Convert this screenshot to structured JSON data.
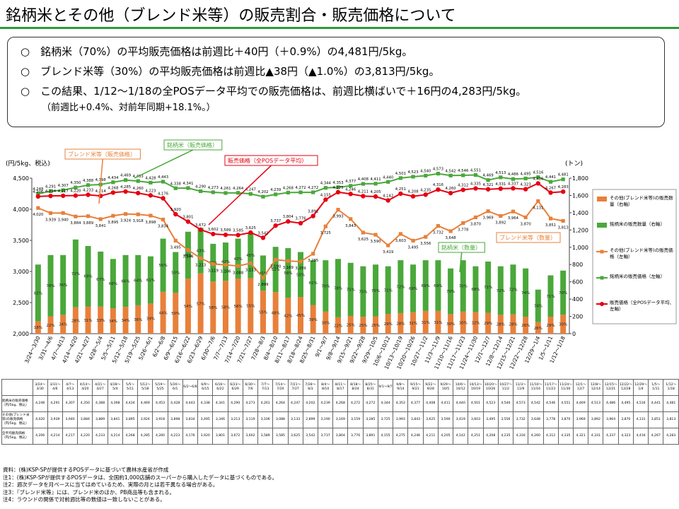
{
  "header": {
    "title": "銘柄米とその他（ブレンド米等）の販売割合・販売価格について",
    "lines": [
      "○　銘柄米（70%）の平均販売価格は前週比＋40円（＋0.9%）の4,481円/5kg。",
      "○　ブレンド米等（30%）の平均販売価格は前週比▲38円（▲1.0%）の3,813円/5kg。",
      "○　この結果、1/12～1/18の全POSデータ平均での販売価格は、前週比横ばいで＋16円の4,283円/5kg。",
      "（前週比+0.4%、対前年同期+18.1%。）"
    ]
  },
  "chart_data": {
    "type": "combo",
    "y_label": "(円/5kg、税込)",
    "y2_label": "(トン)",
    "categories": [
      "3/24～3/30",
      "3/31～4/6",
      "4/7～4/13",
      "4/14～4/20",
      "4/21～4/27",
      "4/28～5/4",
      "5/5～5/11",
      "5/12～5/18",
      "5/19～5/25",
      "5/26～6/1",
      "6/2～6/8",
      "6/9～6/15",
      "6/16～6/22",
      "6/23～6/29",
      "6/30～7/6",
      "7/7～7/13",
      "7/14～7/20",
      "7/21～7/27",
      "7/28～8/3",
      "8/4～8/10",
      "8/11～8/17",
      "8/18～8/24",
      "8/25～8/31",
      "9/1～9/7",
      "9/8～9/14",
      "9/15～9/21",
      "9/22～9/28",
      "9/29～10/5",
      "10/6～10/12",
      "10/13～10/19",
      "10/20～10/26",
      "10/27～11/2",
      "11/3～11/9",
      "11/10～11/16",
      "11/17～11/23",
      "11/24～11/30",
      "12/1～12/7",
      "12/8～12/14",
      "12/15～12/21",
      "12/22～12/28",
      "12/29～1/4",
      "1/5～1/11",
      "1/12～1/18"
    ],
    "ylim": [
      2000,
      4500
    ],
    "yticks": [
      {
        "value": 2000,
        "label": "2,000"
      },
      {
        "value": 2500,
        "label": "2,500"
      },
      {
        "value": 3000,
        "label": "3,000"
      },
      {
        "value": 3500,
        "label": "3,500"
      },
      {
        "value": 4000,
        "label": "4,000"
      },
      {
        "value": 4500,
        "label": "4,500"
      }
    ],
    "y2lim": [
      0,
      1800
    ],
    "y2ticks": [
      0,
      200,
      400,
      600,
      800,
      {
        "value": 1000,
        "label": "1,000"
      },
      {
        "value": 1200,
        "label": "1,200"
      },
      {
        "value": 1400,
        "label": "1,400"
      },
      {
        "value": 1600,
        "label": "1,600"
      },
      {
        "value": 1800,
        "label": "1,800"
      }
    ],
    "series": [
      {
        "name": "その他(ブレンド米等)の販売数量（右軸）",
        "type": "bar",
        "axis": "y2",
        "color": "#e8803a",
        "values": [
          144,
          200,
          218,
          305,
          315,
          313,
          294,
          309,
          328,
          349,
          484,
          472,
          637,
          698,
          603,
          612,
          638,
          643,
          498,
          482,
          416,
          425,
          331,
          255,
          190,
          205,
          195,
          200,
          226,
          238,
          248,
          263,
          263,
          226,
          255,
          250,
          242,
          218,
          224,
          196,
          133,
          196,
          219
        ],
        "share_labels": [
          "18%",
          "22%",
          "24%",
          "28%",
          "31%",
          "33%",
          "34%",
          "34%",
          "36%",
          "39%",
          "44%",
          "50%",
          "54%",
          "57%",
          "58%",
          "58%",
          "58%",
          "55%",
          "55%",
          "48%",
          "42%",
          "45%",
          "39%",
          "30%",
          "22%",
          "25%",
          "25%",
          "25%",
          "29%",
          "28%",
          "31%",
          "31%",
          "31%",
          "30%",
          "30%",
          "32%",
          "29%",
          "28%",
          "28%",
          "26%",
          "26%",
          "29%",
          "30%"
        ]
      },
      {
        "name": "銘柄米の販売数量（右軸）",
        "type": "bar",
        "axis": "y2",
        "color": "#4aa83a",
        "values": [
          656,
          710,
          692,
          785,
          700,
          637,
          571,
          601,
          582,
          546,
          616,
          473,
          543,
          527,
          437,
          443,
          462,
          527,
          407,
          523,
          574,
          520,
          519,
          595,
          675,
          615,
          585,
          600,
          554,
          612,
          552,
          587,
          587,
          529,
          595,
          530,
          593,
          562,
          576,
          559,
          377,
          479,
          511
        ],
        "share_labels": [
          "82%",
          "78%",
          "76%",
          "72%",
          "69%",
          "67%",
          "66%",
          "66%",
          "64%",
          "61%",
          "56%",
          "50%",
          "46%",
          "43%",
          "42%",
          "42%",
          "42%",
          "45%",
          "45%",
          "52%",
          "58%",
          "55%",
          "61%",
          "70%",
          "78%",
          "75%",
          "75%",
          "75%",
          "71%",
          "72%",
          "69%",
          "69%",
          "69%",
          "70%",
          "70%",
          "68%",
          "71%",
          "72%",
          "72%",
          "74%",
          "74%",
          "71%",
          "70%"
        ]
      },
      {
        "name": "その他(ブレンド米等)の販売価格（左軸）",
        "type": "line",
        "color": "#e8803a",
        "marker": "square",
        "values": [
          4020,
          3939,
          3940,
          3884,
          3889,
          3841,
          3895,
          3924,
          3918,
          3898,
          3834,
          3495,
          3346,
          3213,
          3119,
          3106,
          3088,
          3133,
          2899,
          3190,
          3169,
          3159,
          3285,
          3725,
          3993,
          3843,
          3625,
          3590,
          3419,
          3603,
          3495,
          3556,
          3732,
          3648,
          3778,
          3870,
          3969,
          3892,
          3964,
          3870,
          4131,
          3851,
          3813
        ],
        "value_labels": [
          "4,020",
          "3,939",
          "3,940",
          "3,884",
          "3,889",
          "3,841",
          "3,895",
          "3,924",
          "3,918",
          "3,898",
          "3,834",
          "3,495",
          "3,346",
          "3,213",
          "3,119",
          "3,106",
          "3,088",
          "3,133",
          "2,899",
          "3,190",
          "3,169",
          "3,159",
          "3,285",
          "3,725",
          "3,993",
          "3,843",
          "3,625",
          "3,590",
          "3,419",
          "3,603",
          "3,495",
          "3,556",
          "3,732",
          "3,648",
          "3,778",
          "3,870",
          "3,969",
          "3,892",
          "3,964",
          "3,870",
          "4,131",
          "3,851",
          "3,813"
        ]
      },
      {
        "name": "銘柄米の販売価格（左軸）",
        "type": "line",
        "color": "#4aa83a",
        "marker": "square",
        "values": [
          4248,
          4291,
          4307,
          4350,
          4388,
          4398,
          4434,
          4469,
          4453,
          4428,
          4443,
          4338,
          4341,
          4290,
          4273,
          4261,
          4264,
          4247,
          4202,
          4239,
          4268,
          4272,
          4272,
          4344,
          4353,
          4377,
          4408,
          4411,
          4440,
          4501,
          4523,
          4540,
          4573,
          4542,
          4546,
          4551,
          4469,
          4513,
          4486,
          4495,
          4516,
          4441,
          4481
        ],
        "value_labels": [
          "4,248",
          "4,291",
          "4,307",
          "4,350",
          "4,388",
          "4,398",
          "4,434",
          "4,469",
          "4,453",
          "4,428",
          "4,443",
          "4,338",
          "4,341",
          "4,290",
          "4,273",
          "4,261",
          "4,264",
          "4,247",
          "4,202",
          "4,239",
          "4,268",
          "4,272",
          "4,272",
          "4,344",
          "4,353",
          "4,377",
          "4,408",
          "4,411",
          "4,440",
          "4,501",
          "4,523",
          "4,540",
          "4,573",
          "4,542",
          "4,546",
          "4,551",
          "4,469",
          "4,513",
          "4,486",
          "4,495",
          "4,516",
          "4,441",
          "4,481"
        ]
      },
      {
        "name": "販売価格（全POSデータ平均、左軸）",
        "type": "line",
        "color": "#e60012",
        "marker": "circle",
        "values": [
          4206,
          4214,
          4217,
          4220,
          4233,
          4214,
          4268,
          4285,
          4260,
          4223,
          4176,
          3920,
          3801,
          3672,
          3602,
          3589,
          3585,
          3625,
          3542,
          3737,
          3804,
          3776,
          3891,
          4155,
          4275,
          4246,
          4211,
          4205,
          4142,
          4251,
          4208,
          4235,
          4316,
          4260,
          4312,
          4335,
          4321,
          4331,
          4337,
          4323,
          4416,
          4267,
          4283
        ],
        "value_labels": [
          "4,206",
          "4,214",
          "4,217",
          "4,220",
          "4,233",
          "4,214",
          "4,268",
          "4,285",
          "4,260",
          "4,223",
          "4,176",
          "3,920",
          "3,801",
          "3,672",
          "3,602",
          "3,589",
          "3,585",
          "3,625",
          "3,542",
          "3,737",
          "3,804",
          "3,776",
          "3,891",
          "4,155",
          "4,275",
          "4,246",
          "4,211",
          "4,205",
          "4,142",
          "4,251",
          "4,208",
          "4,235",
          "4,316",
          "4,260",
          "4,312",
          "4,335",
          "4,321",
          "4,331",
          "4,337",
          "4,323",
          "4,416",
          "4,267",
          "4,283"
        ]
      }
    ],
    "annotations": [
      {
        "text": "ブレンド米等（販売価格）",
        "color": "#e8803a"
      },
      {
        "text": "銘柄米（販売価格）",
        "color": "#4aa83a"
      },
      {
        "text": "販売価格（全POSデータ平均）",
        "color": "#e60012"
      },
      {
        "text": "銘柄米（数量）",
        "color": "#4aa83a"
      },
      {
        "text": "ブレンド米等（数量）",
        "color": "#e8803a"
      }
    ]
  },
  "table": {
    "row_labels": [
      "銘柄米の販売価格（円/5kg、税込）",
      "その他(ブレンド米等)の販売価格（円/5kg、税込）",
      "全平均販売価格（円/5kg、税込）"
    ]
  },
  "notes": [
    "資料：(株)KSP-SPが提供するPOSデータに基づいて農林水産省が作成",
    "注1：(株)KSP-SPが提供するPOSデータは、全国約1,000店舗のスーパーから購入したデータに基づくものである。",
    "注2：週次データを月ベースに当てはめているため、実際の月とは若干異なる場合がある。",
    "注3：『ブレンド米等』には、ブレンド米のほか、PB商品等も含まれる。",
    "注4：ラウンドの関係で対前週比等の数値は一致しないことがある。"
  ]
}
